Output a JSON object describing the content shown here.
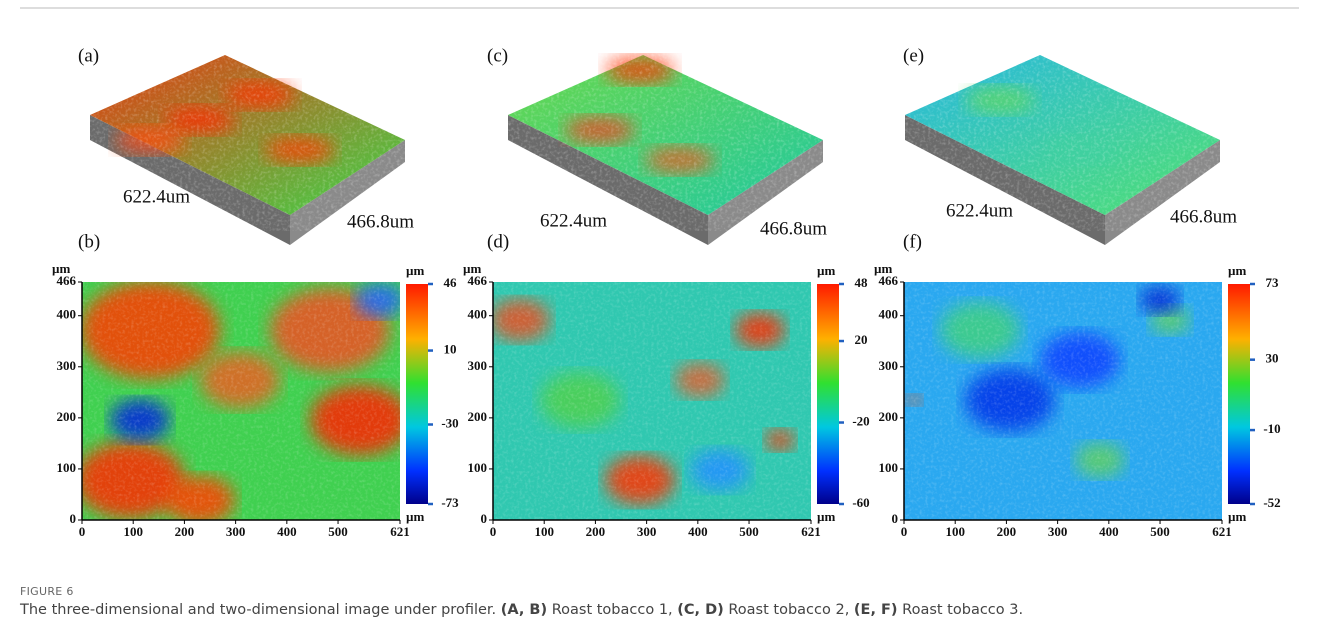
{
  "figure": {
    "panels": [
      {
        "label": "(a)",
        "length": "622.4um",
        "width": "466.8um"
      },
      {
        "label": "(c)",
        "length": "622.4um",
        "width": "466.8um"
      },
      {
        "label": "(e)",
        "length": "622.4um",
        "width": "466.8um"
      }
    ],
    "maps": [
      {
        "label": "(b)",
        "unit": "µm",
        "xlim": [
          0,
          621
        ],
        "ylim": [
          0,
          466
        ],
        "xticks": [
          0,
          100,
          200,
          300,
          400,
          500,
          621
        ],
        "yticks": [
          0,
          100,
          200,
          300,
          400,
          466
        ],
        "colorbar": {
          "unit": "µm",
          "bottom_unit": "µm",
          "lim": [
            -73,
            46
          ],
          "ticks": [
            46,
            10,
            -30,
            -73
          ]
        }
      },
      {
        "label": "(d)",
        "unit": "µm",
        "xlim": [
          0,
          621
        ],
        "ylim": [
          0,
          466
        ],
        "xticks": [
          0,
          100,
          200,
          300,
          400,
          500,
          621
        ],
        "yticks": [
          0,
          100,
          200,
          300,
          400,
          466
        ],
        "colorbar": {
          "unit": "µm",
          "bottom_unit": "µm",
          "lim": [
            -60,
            48
          ],
          "ticks": [
            48,
            20,
            -20,
            -60
          ]
        }
      },
      {
        "label": "(f)",
        "unit": "µm",
        "xlim": [
          0,
          621
        ],
        "ylim": [
          0,
          466
        ],
        "xticks": [
          0,
          100,
          200,
          300,
          400,
          500,
          621
        ],
        "yticks": [
          0,
          100,
          200,
          300,
          400,
          466
        ],
        "colorbar": {
          "unit": "µm",
          "bottom_unit": "µm",
          "lim": [
            -52,
            73
          ],
          "ticks": [
            73,
            30,
            -10,
            -52
          ]
        }
      }
    ]
  },
  "caption": {
    "number": "FIGURE 6",
    "parts": [
      {
        "text": "The three-dimensional and two-dimensional image under profiler. ",
        "bold": false
      },
      {
        "text": "(A, B)",
        "bold": true
      },
      {
        "text": " Roast tobacco 1, ",
        "bold": false
      },
      {
        "text": "(C, D)",
        "bold": true
      },
      {
        "text": " Roast tobacco 2, ",
        "bold": false
      },
      {
        "text": "(E, F)",
        "bold": true
      },
      {
        "text": " Roast tobacco 3.",
        "bold": false
      }
    ]
  }
}
